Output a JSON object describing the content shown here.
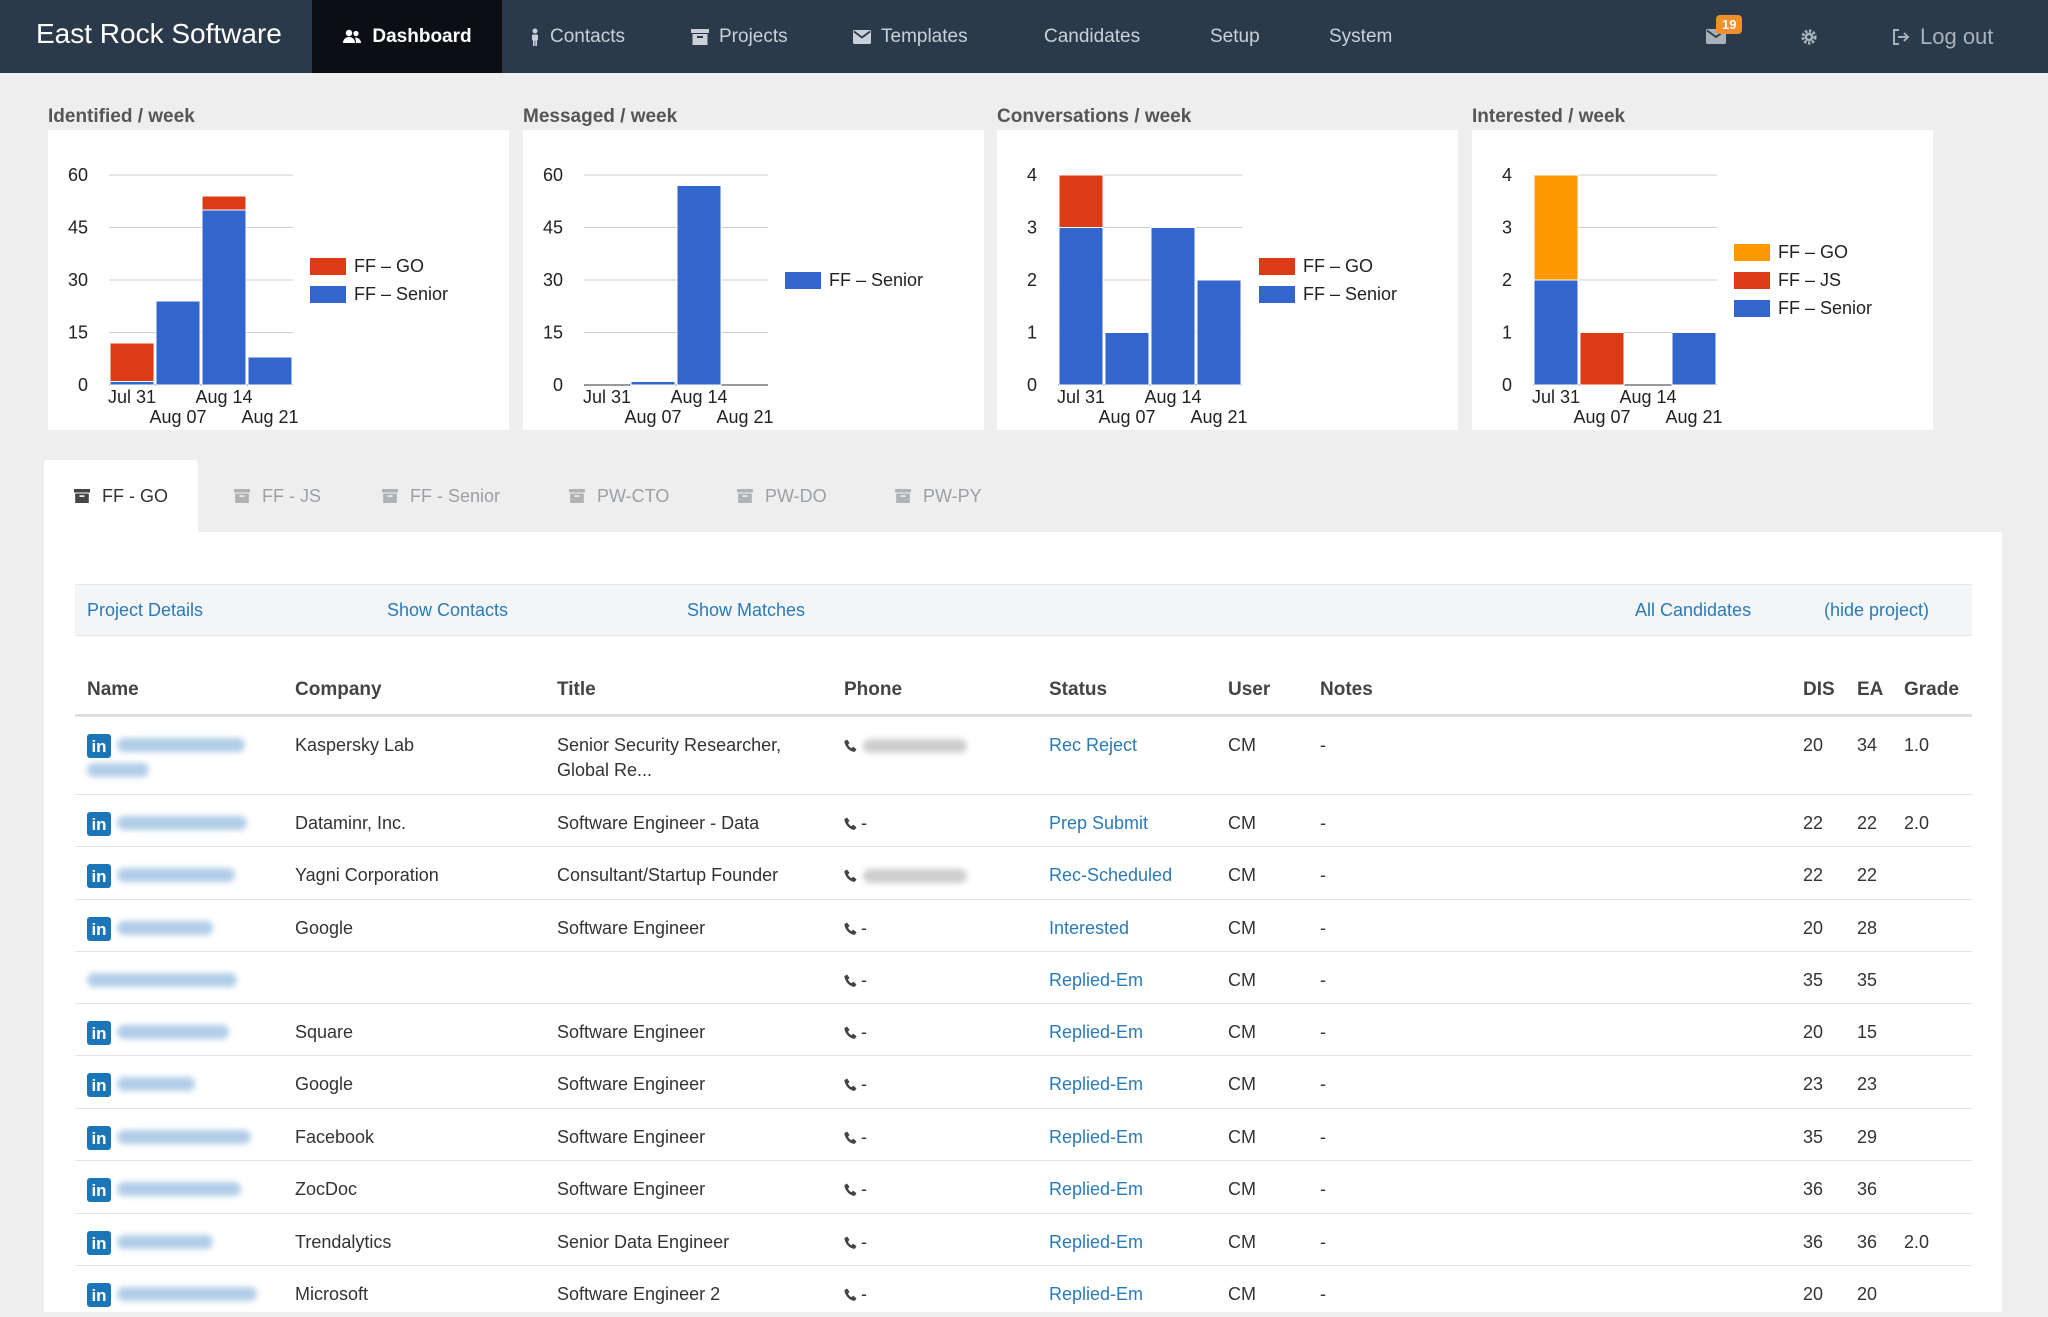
{
  "app": {
    "brand": "East Rock Software"
  },
  "nav": {
    "dashboard": "Dashboard",
    "contacts": "Contacts",
    "projects": "Projects",
    "templates": "Templates",
    "candidates": "Candidates",
    "setup": "Setup",
    "system": "System",
    "mail_badge": "19",
    "logout": "Log out"
  },
  "colors": {
    "go": "#dd3b15",
    "js": "#dd3b15",
    "senior": "#3366cc",
    "go_interested": "#ff9900"
  },
  "charts": [
    {
      "title": "Identified / week"
    },
    {
      "title": "Messaged / week"
    },
    {
      "title": "Conversations / week"
    },
    {
      "title": "Interested / week"
    }
  ],
  "chart_data": [
    {
      "type": "bar",
      "stacked": true,
      "title": "Identified / week",
      "categories": [
        "Jul 31",
        "Aug 07",
        "Aug 14",
        "Aug 21"
      ],
      "y_ticks": [
        "0",
        "15",
        "30",
        "45",
        "60"
      ],
      "ylim": [
        0,
        60
      ],
      "series": [
        {
          "name": "FF – Senior",
          "color": "#3366cc",
          "values": [
            1,
            24,
            50,
            8
          ]
        },
        {
          "name": "FF – GO",
          "color": "#dd3b15",
          "values": [
            11,
            0,
            4,
            0
          ]
        }
      ],
      "legend": [
        "FF – GO",
        "FF – Senior"
      ],
      "legend_colors": [
        "#dd3b15",
        "#3366cc"
      ],
      "legend_position": "right"
    },
    {
      "type": "bar",
      "stacked": true,
      "title": "Messaged / week",
      "categories": [
        "Jul 31",
        "Aug 07",
        "Aug 14",
        "Aug 21"
      ],
      "y_ticks": [
        "0",
        "15",
        "30",
        "45",
        "60"
      ],
      "ylim": [
        0,
        60
      ],
      "series": [
        {
          "name": "FF – Senior",
          "color": "#3366cc",
          "values": [
            0,
            1,
            57,
            0
          ]
        }
      ],
      "legend": [
        "FF – Senior"
      ],
      "legend_colors": [
        "#3366cc"
      ],
      "legend_position": "right"
    },
    {
      "type": "bar",
      "stacked": true,
      "title": "Conversations / week",
      "categories": [
        "Jul 31",
        "Aug 07",
        "Aug 14",
        "Aug 21"
      ],
      "y_ticks": [
        "0",
        "1",
        "2",
        "3",
        "4"
      ],
      "ylim": [
        0,
        4
      ],
      "series": [
        {
          "name": "FF – Senior",
          "color": "#3366cc",
          "values": [
            3,
            1,
            3,
            2
          ]
        },
        {
          "name": "FF – GO",
          "color": "#dd3b15",
          "values": [
            1,
            0,
            0,
            0
          ]
        }
      ],
      "legend": [
        "FF – GO",
        "FF – Senior"
      ],
      "legend_colors": [
        "#dd3b15",
        "#3366cc"
      ],
      "legend_position": "right"
    },
    {
      "type": "bar",
      "stacked": true,
      "title": "Interested / week",
      "categories": [
        "Jul 31",
        "Aug 07",
        "Aug 14",
        "Aug 21"
      ],
      "y_ticks": [
        "0",
        "1",
        "2",
        "3",
        "4"
      ],
      "ylim": [
        0,
        4
      ],
      "series": [
        {
          "name": "FF – Senior",
          "color": "#3366cc",
          "values": [
            2,
            0,
            0,
            1
          ]
        },
        {
          "name": "FF – JS",
          "color": "#dd3b15",
          "values": [
            0,
            1,
            0,
            0
          ]
        },
        {
          "name": "FF – GO",
          "color": "#ff9900",
          "values": [
            2,
            0,
            0,
            0
          ]
        }
      ],
      "legend": [
        "FF – GO",
        "FF – JS",
        "FF – Senior"
      ],
      "legend_colors": [
        "#ff9900",
        "#dd3b15",
        "#3366cc"
      ],
      "legend_position": "right"
    }
  ],
  "tabs": [
    {
      "label": "FF - GO",
      "active": true
    },
    {
      "label": "FF - JS"
    },
    {
      "label": "FF - Senior"
    },
    {
      "label": "PW-CTO"
    },
    {
      "label": "PW-DO"
    },
    {
      "label": "PW-PY"
    }
  ],
  "actions": {
    "project_details": "Project Details",
    "show_contacts": "Show Contacts",
    "show_matches": "Show Matches",
    "all_candidates": "All Candidates",
    "hide_project": "(hide project)"
  },
  "table": {
    "headers": {
      "name": "Name",
      "company": "Company",
      "title": "Title",
      "phone": "Phone",
      "status": "Status",
      "user": "User",
      "notes": "Notes",
      "dis": "DIS",
      "ea": "EA",
      "grade": "Grade"
    },
    "rows": [
      {
        "linkedin": true,
        "company": "Kaspersky Lab",
        "title": "Senior Security Researcher, Global Re...",
        "phone": "",
        "status": "Rec Reject",
        "user": "CM",
        "notes": "-",
        "dis": "20",
        "ea": "34",
        "grade": "1.0"
      },
      {
        "linkedin": true,
        "company": "Dataminr, Inc.",
        "title": "Software Engineer - Data",
        "phone": "-",
        "status": "Prep Submit",
        "user": "CM",
        "notes": "-",
        "dis": "22",
        "ea": "22",
        "grade": "2.0"
      },
      {
        "linkedin": true,
        "company": "Yagni Corporation",
        "title": "Consultant/Startup Founder",
        "phone": "",
        "status": "Rec-Scheduled",
        "user": "CM",
        "notes": "-",
        "dis": "22",
        "ea": "22",
        "grade": ""
      },
      {
        "linkedin": true,
        "company": "Google",
        "title": "Software Engineer",
        "phone": "-",
        "status": "Interested",
        "user": "CM",
        "notes": "-",
        "dis": "20",
        "ea": "28",
        "grade": ""
      },
      {
        "linkedin": false,
        "company": "",
        "title": "",
        "phone": "-",
        "status": "Replied-Em",
        "user": "CM",
        "notes": "-",
        "dis": "35",
        "ea": "35",
        "grade": ""
      },
      {
        "linkedin": true,
        "company": "Square",
        "title": "Software Engineer",
        "phone": "-",
        "status": "Replied-Em",
        "user": "CM",
        "notes": "-",
        "dis": "20",
        "ea": "15",
        "grade": ""
      },
      {
        "linkedin": true,
        "company": "Google",
        "title": "Software Engineer",
        "phone": "-",
        "status": "Replied-Em",
        "user": "CM",
        "notes": "-",
        "dis": "23",
        "ea": "23",
        "grade": ""
      },
      {
        "linkedin": true,
        "company": "Facebook",
        "title": "Software Engineer",
        "phone": "-",
        "status": "Replied-Em",
        "user": "CM",
        "notes": "-",
        "dis": "35",
        "ea": "29",
        "grade": ""
      },
      {
        "linkedin": true,
        "company": "ZocDoc",
        "title": "Software Engineer",
        "phone": "-",
        "status": "Replied-Em",
        "user": "CM",
        "notes": "-",
        "dis": "36",
        "ea": "36",
        "grade": ""
      },
      {
        "linkedin": true,
        "company": "Trendalytics",
        "title": "Senior Data Engineer",
        "phone": "-",
        "status": "Replied-Em",
        "user": "CM",
        "notes": "-",
        "dis": "36",
        "ea": "36",
        "grade": "2.0"
      },
      {
        "linkedin": true,
        "company": "Microsoft",
        "title": "Software Engineer 2",
        "phone": "-",
        "status": "Replied-Em",
        "user": "CM",
        "notes": "-",
        "dis": "20",
        "ea": "20",
        "grade": ""
      }
    ]
  }
}
